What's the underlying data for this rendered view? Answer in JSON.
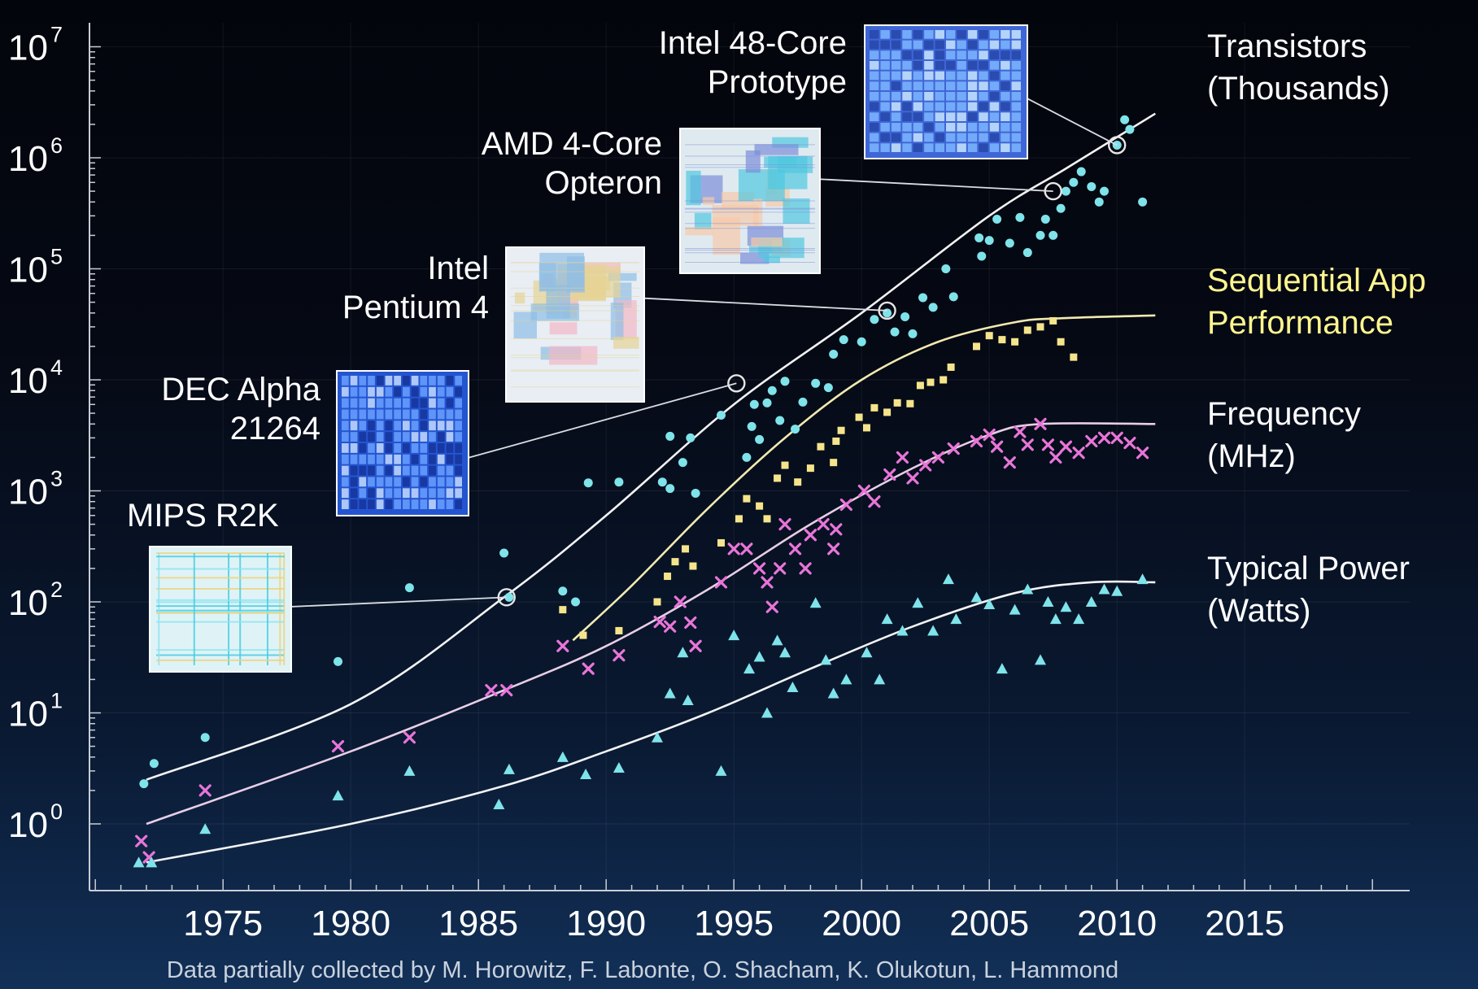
{
  "chart_data": {
    "type": "scatter",
    "y_scale": "log",
    "ylim": [
      0.3,
      10000000
    ],
    "xlim": [
      1969,
      2021
    ],
    "x_ticks": [
      "1975",
      "1980",
      "1985",
      "1990",
      "1995",
      "2000",
      "2005",
      "2010",
      "2015"
    ],
    "y_ticks": [
      {
        "base": "10",
        "exp": "0"
      },
      {
        "base": "10",
        "exp": "1"
      },
      {
        "base": "10",
        "exp": "2"
      },
      {
        "base": "10",
        "exp": "3"
      },
      {
        "base": "10",
        "exp": "4"
      },
      {
        "base": "10",
        "exp": "5"
      },
      {
        "base": "10",
        "exp": "6"
      },
      {
        "base": "10",
        "exp": "7"
      }
    ],
    "footnote": "Data partially collected by M. Horowitz, F. Labonte, O. Shacham, K. Olukotun, L. Hammond",
    "series": [
      {
        "name_lines": [
          "Transistors",
          "(Thousands)"
        ],
        "label_color": "#ffffff",
        "color": "#7fe3ea",
        "marker": "circle",
        "trend": [
          [
            1972,
            2.5
          ],
          [
            1980,
            12
          ],
          [
            1986,
            110
          ],
          [
            1990,
            600
          ],
          [
            1995,
            6000
          ],
          [
            2000,
            40000
          ],
          [
            2005,
            300000
          ],
          [
            2008,
            800000
          ],
          [
            2011.5,
            2500000
          ]
        ],
        "points": [
          [
            1971.9,
            2.3
          ],
          [
            1972.3,
            3.5
          ],
          [
            1974.3,
            6
          ],
          [
            1979.5,
            29
          ],
          [
            1982.3,
            134
          ],
          [
            1986,
            275
          ],
          [
            1986.2,
            110
          ],
          [
            1988.3,
            125
          ],
          [
            1988.8,
            100
          ],
          [
            1989.3,
            1180
          ],
          [
            1990.5,
            1200
          ],
          [
            1992.2,
            1200
          ],
          [
            1992.5,
            1050
          ],
          [
            1992.5,
            3100
          ],
          [
            1993,
            1800
          ],
          [
            1993.3,
            3000
          ],
          [
            1993.5,
            950
          ],
          [
            1994.5,
            4800
          ],
          [
            1995.5,
            2000
          ],
          [
            1995.7,
            3800
          ],
          [
            1995.8,
            6000
          ],
          [
            1996,
            2900
          ],
          [
            1996.3,
            6200
          ],
          [
            1996.5,
            8000
          ],
          [
            1996.8,
            4300
          ],
          [
            1997,
            9700
          ],
          [
            1997.4,
            3600
          ],
          [
            1997.7,
            6300
          ],
          [
            1998.2,
            9300
          ],
          [
            1998.7,
            8500
          ],
          [
            1998.9,
            17000
          ],
          [
            1999.3,
            23000
          ],
          [
            2000,
            22000
          ],
          [
            2000.5,
            35000
          ],
          [
            2001,
            40000
          ],
          [
            2001.3,
            27000
          ],
          [
            2001.7,
            37000
          ],
          [
            2002,
            26000
          ],
          [
            2002.4,
            55000
          ],
          [
            2002.8,
            45000
          ],
          [
            2003.3,
            100000
          ],
          [
            2003.6,
            56000
          ],
          [
            2004.6,
            190000
          ],
          [
            2004.7,
            130000
          ],
          [
            2005,
            180000
          ],
          [
            2005.3,
            280000
          ],
          [
            2005.8,
            170000
          ],
          [
            2006.2,
            290000
          ],
          [
            2006.5,
            140000
          ],
          [
            2007,
            200000
          ],
          [
            2007.2,
            280000
          ],
          [
            2007.5,
            200000
          ],
          [
            2007.8,
            350000
          ],
          [
            2008,
            500000
          ],
          [
            2008.3,
            600000
          ],
          [
            2008.6,
            750000
          ],
          [
            2009,
            550000
          ],
          [
            2009.3,
            400000
          ],
          [
            2009.5,
            500000
          ],
          [
            2010,
            1300000
          ],
          [
            2010.3,
            2200000
          ],
          [
            2010.5,
            1800000
          ],
          [
            2011,
            400000
          ]
        ]
      },
      {
        "name_lines": [
          "Sequential App",
          "Performance"
        ],
        "label_color": "#fff68f",
        "color": "#f5e48c",
        "marker": "square",
        "trend": [
          [
            1988.7,
            45
          ],
          [
            1991,
            140
          ],
          [
            1994,
            700
          ],
          [
            1997,
            3000
          ],
          [
            2000,
            10000
          ],
          [
            2003,
            22000
          ],
          [
            2006,
            33000
          ],
          [
            2008,
            36000
          ],
          [
            2011.5,
            38000
          ]
        ],
        "points": [
          [
            1988.3,
            85
          ],
          [
            1989.1,
            50
          ],
          [
            1990.5,
            55
          ],
          [
            1992,
            100
          ],
          [
            1992.4,
            170
          ],
          [
            1992.7,
            230
          ],
          [
            1993.1,
            300
          ],
          [
            1993.4,
            210
          ],
          [
            1994.5,
            340
          ],
          [
            1995.2,
            560
          ],
          [
            1995.5,
            850
          ],
          [
            1996,
            730
          ],
          [
            1996.3,
            560
          ],
          [
            1996.7,
            1300
          ],
          [
            1997,
            1700
          ],
          [
            1997.5,
            1200
          ],
          [
            1998,
            1600
          ],
          [
            1998.4,
            2500
          ],
          [
            1998.9,
            1800
          ],
          [
            1999,
            2800
          ],
          [
            1999.2,
            3500
          ],
          [
            1999.9,
            4600
          ],
          [
            2000.2,
            3700
          ],
          [
            2000.5,
            5600
          ],
          [
            2001,
            5100
          ],
          [
            2001.4,
            6200
          ],
          [
            2001.9,
            6100
          ],
          [
            2002.3,
            8900
          ],
          [
            2002.7,
            9500
          ],
          [
            2003.2,
            10000
          ],
          [
            2003.5,
            13000
          ],
          [
            2004.5,
            20000
          ],
          [
            2005,
            25000
          ],
          [
            2005.5,
            23000
          ],
          [
            2006,
            22000
          ],
          [
            2006.5,
            28000
          ],
          [
            2007,
            30000
          ],
          [
            2007.5,
            34000
          ],
          [
            2007.8,
            22000
          ],
          [
            2008.3,
            16000
          ]
        ]
      },
      {
        "name_lines": [
          "Frequency",
          "(MHz)"
        ],
        "label_color": "#ffffff",
        "color": "#e875d8",
        "marker": "x",
        "trend": [
          [
            1972,
            1.0
          ],
          [
            1980,
            4.5
          ],
          [
            1986,
            16
          ],
          [
            1990,
            40
          ],
          [
            1994,
            130
          ],
          [
            1998,
            500
          ],
          [
            2002,
            1600
          ],
          [
            2005,
            3200
          ],
          [
            2007,
            4000
          ],
          [
            2011.5,
            4000
          ]
        ],
        "points": [
          [
            1971.8,
            0.7
          ],
          [
            1972.1,
            0.5
          ],
          [
            1974.3,
            2
          ],
          [
            1979.5,
            5
          ],
          [
            1982.3,
            6
          ],
          [
            1985.5,
            16
          ],
          [
            1986.1,
            16
          ],
          [
            1988.3,
            40
          ],
          [
            1989.3,
            25
          ],
          [
            1990.5,
            33
          ],
          [
            1992.1,
            66
          ],
          [
            1992.5,
            60
          ],
          [
            1992.9,
            100
          ],
          [
            1993.3,
            65
          ],
          [
            1993.5,
            40
          ],
          [
            1994.5,
            150
          ],
          [
            1995,
            300
          ],
          [
            1995.5,
            300
          ],
          [
            1996,
            200
          ],
          [
            1996.3,
            150
          ],
          [
            1996.5,
            90
          ],
          [
            1996.8,
            200
          ],
          [
            1997,
            500
          ],
          [
            1997.4,
            300
          ],
          [
            1997.8,
            200
          ],
          [
            1998,
            400
          ],
          [
            1998.5,
            500
          ],
          [
            1998.9,
            300
          ],
          [
            1999,
            450
          ],
          [
            1999.4,
            750
          ],
          [
            2000.1,
            1000
          ],
          [
            2000.5,
            800
          ],
          [
            2001.1,
            1400
          ],
          [
            2001.6,
            2000
          ],
          [
            2002,
            1300
          ],
          [
            2002.5,
            1700
          ],
          [
            2003,
            2000
          ],
          [
            2003.6,
            2400
          ],
          [
            2004.5,
            2800
          ],
          [
            2005,
            3200
          ],
          [
            2005.3,
            2500
          ],
          [
            2005.8,
            1800
          ],
          [
            2006.2,
            3400
          ],
          [
            2006.5,
            2600
          ],
          [
            2007,
            4000
          ],
          [
            2007.3,
            2600
          ],
          [
            2007.6,
            2000
          ],
          [
            2008,
            2500
          ],
          [
            2008.5,
            2200
          ],
          [
            2009,
            2800
          ],
          [
            2009.5,
            3000
          ],
          [
            2010,
            3000
          ],
          [
            2010.5,
            2700
          ],
          [
            2011,
            2200
          ]
        ]
      },
      {
        "name_lines": [
          "Typical Power",
          "(Watts)"
        ],
        "label_color": "#ffffff",
        "color": "#7fe3ea",
        "marker": "triangle",
        "trend": [
          [
            1972,
            0.45
          ],
          [
            1980,
            1.0
          ],
          [
            1986,
            2.2
          ],
          [
            1990,
            4.5
          ],
          [
            1994,
            10
          ],
          [
            1998,
            25
          ],
          [
            2002,
            60
          ],
          [
            2006,
            120
          ],
          [
            2009,
            150
          ],
          [
            2011.5,
            150
          ]
        ],
        "points": [
          [
            1971.7,
            0.45
          ],
          [
            1972.2,
            0.45
          ],
          [
            1974.3,
            0.9
          ],
          [
            1979.5,
            1.8
          ],
          [
            1982.3,
            3
          ],
          [
            1985.8,
            1.5
          ],
          [
            1986.2,
            3.1
          ],
          [
            1988.3,
            4
          ],
          [
            1989.2,
            2.8
          ],
          [
            1990.5,
            3.2
          ],
          [
            1992,
            6
          ],
          [
            1992.5,
            15
          ],
          [
            1993.2,
            13
          ],
          [
            1993,
            35
          ],
          [
            1994.5,
            3
          ],
          [
            1995,
            50
          ],
          [
            1995.6,
            25
          ],
          [
            1996,
            32
          ],
          [
            1996.3,
            10
          ],
          [
            1996.7,
            45
          ],
          [
            1997,
            35
          ],
          [
            1997.3,
            17
          ],
          [
            1998.2,
            98
          ],
          [
            1998.6,
            30
          ],
          [
            1998.9,
            15
          ],
          [
            1999.4,
            20
          ],
          [
            2000.2,
            35
          ],
          [
            2000.7,
            20
          ],
          [
            2001,
            70
          ],
          [
            2001.6,
            55
          ],
          [
            2002.2,
            98
          ],
          [
            2002.8,
            55
          ],
          [
            2003.4,
            160
          ],
          [
            2003.7,
            70
          ],
          [
            2004.5,
            110
          ],
          [
            2005,
            95
          ],
          [
            2005.5,
            25
          ],
          [
            2006,
            85
          ],
          [
            2006.5,
            130
          ],
          [
            2007,
            30
          ],
          [
            2007.3,
            100
          ],
          [
            2007.6,
            70
          ],
          [
            2008,
            90
          ],
          [
            2008.5,
            70
          ],
          [
            2009,
            100
          ],
          [
            2009.5,
            130
          ],
          [
            2010,
            125
          ],
          [
            2011,
            160
          ]
        ]
      }
    ],
    "annotations": [
      {
        "lines": [
          "Intel 48-Core",
          "Prototype"
        ],
        "anchor": [
          2010,
          1300000
        ],
        "chip": "c48"
      },
      {
        "lines": [
          "AMD 4-Core",
          "Opteron"
        ],
        "anchor": [
          2007.5,
          500000
        ],
        "chip": "amd"
      },
      {
        "lines": [
          "Intel",
          "Pentium 4"
        ],
        "anchor": [
          2001,
          42000
        ],
        "chip": "p4"
      },
      {
        "lines": [
          "DEC Alpha",
          "21264"
        ],
        "anchor": [
          1995.1,
          9300
        ],
        "chip": "alpha"
      },
      {
        "lines": [
          "MIPS R2K"
        ],
        "anchor": [
          1986.1,
          110
        ],
        "chip": "mips"
      }
    ]
  }
}
